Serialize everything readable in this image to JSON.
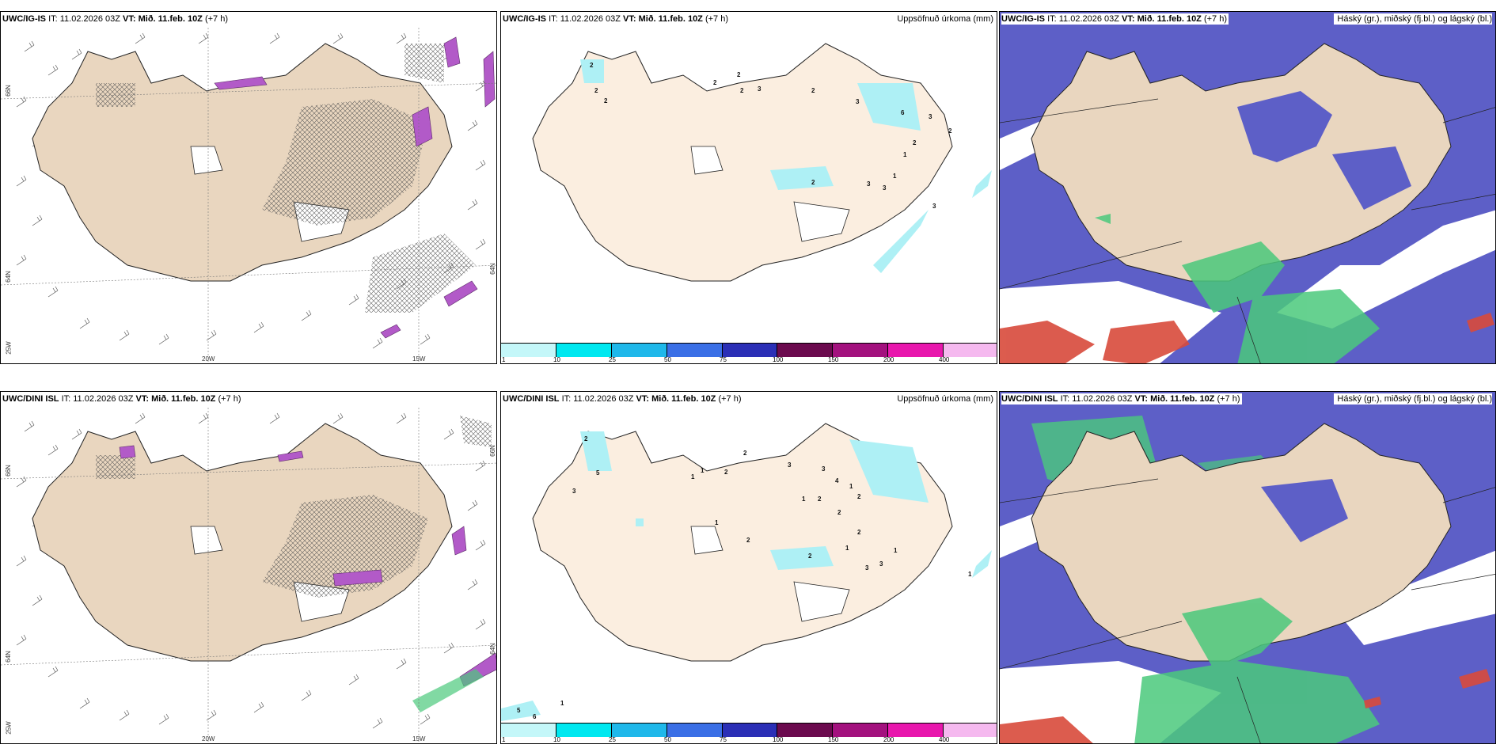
{
  "icons": {
    "wind_barb": "wind-barb-icon"
  },
  "colors": {
    "land": "#e9d6bf",
    "land_fill_light": "#fbeee0",
    "ocean_cloud": "#5d5fc7",
    "precip_purple": "#b25ac8",
    "precip_cyan": "#aef0f5",
    "green": "#4bc97c",
    "red": "#d84a3b"
  },
  "top": {
    "left": {
      "model": "UWC/IG-IS",
      "it": "IT: 11.02.2026 03Z",
      "vt": "VT: Mið. 11.feb. 10Z",
      "lead": "(+7 h)",
      "grid_labels": {
        "lat66": "66N",
        "lat64": "64N",
        "lon25": "25W",
        "lon20": "20W",
        "lon15": "15W",
        "lat64r": "64N"
      }
    },
    "mid": {
      "model": "UWC/IG-IS",
      "it": "IT: 11.02.2026 03Z",
      "vt": "VT: Mið. 11.feb. 10Z",
      "lead": "(+7 h)",
      "right": "Uppsöfnuð úrkoma (mm)",
      "values": [
        "2",
        "2",
        "2",
        "2",
        "2",
        "2",
        "3",
        "2",
        "3",
        "6",
        "3",
        "2",
        "2",
        "1",
        "2",
        "3",
        "3",
        "1",
        "3"
      ]
    },
    "right": {
      "model": "UWC/IG-IS",
      "it": "IT: 11.02.2026 03Z",
      "vt": "VT: Mið. 11.feb. 10Z",
      "lead": "(+7 h)",
      "right": "Háský (gr.), miðský (fj.bl.) og lágský (bl.)"
    }
  },
  "bottom": {
    "left": {
      "model": "UWC/DINI ISL",
      "it": "IT: 11.02.2026 03Z",
      "vt": "VT: Mið. 11.feb. 10Z",
      "lead": "(+7 h)",
      "grid_labels": {
        "lat66": "66N",
        "lat64": "64N",
        "lon25": "25W",
        "lon20": "20W",
        "lon15": "15W",
        "lat66r": "66N",
        "lat64r": "64N"
      }
    },
    "mid": {
      "model": "UWC/DINI ISL",
      "it": "IT: 11.02.2026 03Z",
      "vt": "VT: Mið. 11.feb. 10Z",
      "lead": "(+7 h)",
      "right": "Uppsöfnuð úrkoma (mm)",
      "values": [
        "2",
        "5",
        "3",
        "1",
        "1",
        "2",
        "2",
        "3",
        "3",
        "4",
        "1",
        "1",
        "2",
        "2",
        "2",
        "2",
        "1",
        "2",
        "1",
        "3",
        "3",
        "2",
        "1",
        "1",
        "5",
        "1",
        "6"
      ]
    },
    "right": {
      "model": "UWC/DINI ISL",
      "it": "IT: 11.02.2026 03Z",
      "vt": "VT: Mið. 11.feb. 10Z",
      "lead": "(+7 h)",
      "right": "Háský (gr.), miðský (fj.bl.) og lágský (bl.)"
    }
  },
  "colorbar": {
    "ticks": [
      "1",
      "10",
      "25",
      "50",
      "75",
      "100",
      "150",
      "200",
      "400"
    ],
    "colors": [
      "#c4f7f9",
      "#00e8f0",
      "#1fb8ea",
      "#3a6fe6",
      "#2b2fb6",
      "#6b0a4e",
      "#a3117e",
      "#e817ad",
      "#f5b9ef"
    ]
  }
}
